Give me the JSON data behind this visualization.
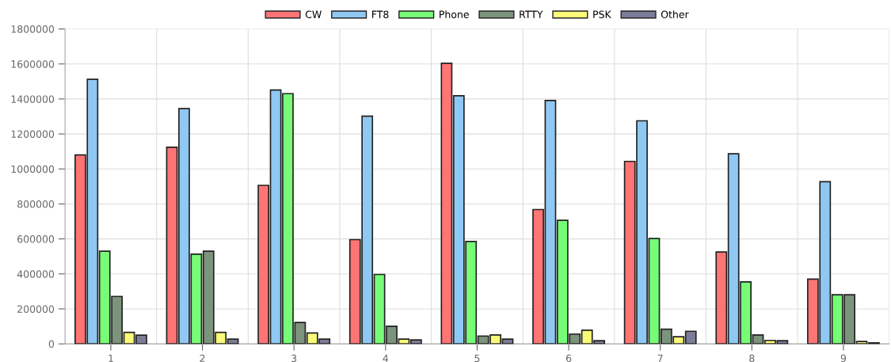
{
  "chart_data": {
    "type": "bar",
    "categories": [
      "1",
      "2",
      "3",
      "4",
      "5",
      "6",
      "7",
      "8",
      "9"
    ],
    "series": [
      {
        "name": "CW",
        "color": "#ff7474",
        "values": [
          1080000,
          1124000,
          906000,
          596000,
          1604000,
          768000,
          1043000,
          525000,
          370000
        ]
      },
      {
        "name": "FT8",
        "color": "#8fc8f2",
        "values": [
          1512000,
          1345000,
          1451000,
          1302000,
          1418000,
          1391000,
          1275000,
          1087000,
          927000
        ]
      },
      {
        "name": "Phone",
        "color": "#77fc77",
        "values": [
          530000,
          513000,
          1430000,
          397000,
          585000,
          706000,
          602000,
          354000,
          281000
        ]
      },
      {
        "name": "RTTY",
        "color": "#7c937c",
        "values": [
          271000,
          530000,
          122000,
          101000,
          45000,
          56000,
          84000,
          51000,
          281000
        ]
      },
      {
        "name": "PSK",
        "color": "#fafa78",
        "values": [
          66000,
          66000,
          62000,
          27000,
          51000,
          78000,
          41000,
          20000,
          14000
        ]
      },
      {
        "name": "Other",
        "color": "#7c7c98",
        "values": [
          50000,
          27000,
          27000,
          23000,
          27000,
          18000,
          72000,
          18000,
          6000
        ]
      }
    ],
    "ylim": [
      0,
      1800000
    ],
    "yticks": [
      0,
      200000,
      400000,
      600000,
      800000,
      1000000,
      1200000,
      1400000,
      1600000,
      1800000
    ],
    "grid": true,
    "legend": "top"
  }
}
